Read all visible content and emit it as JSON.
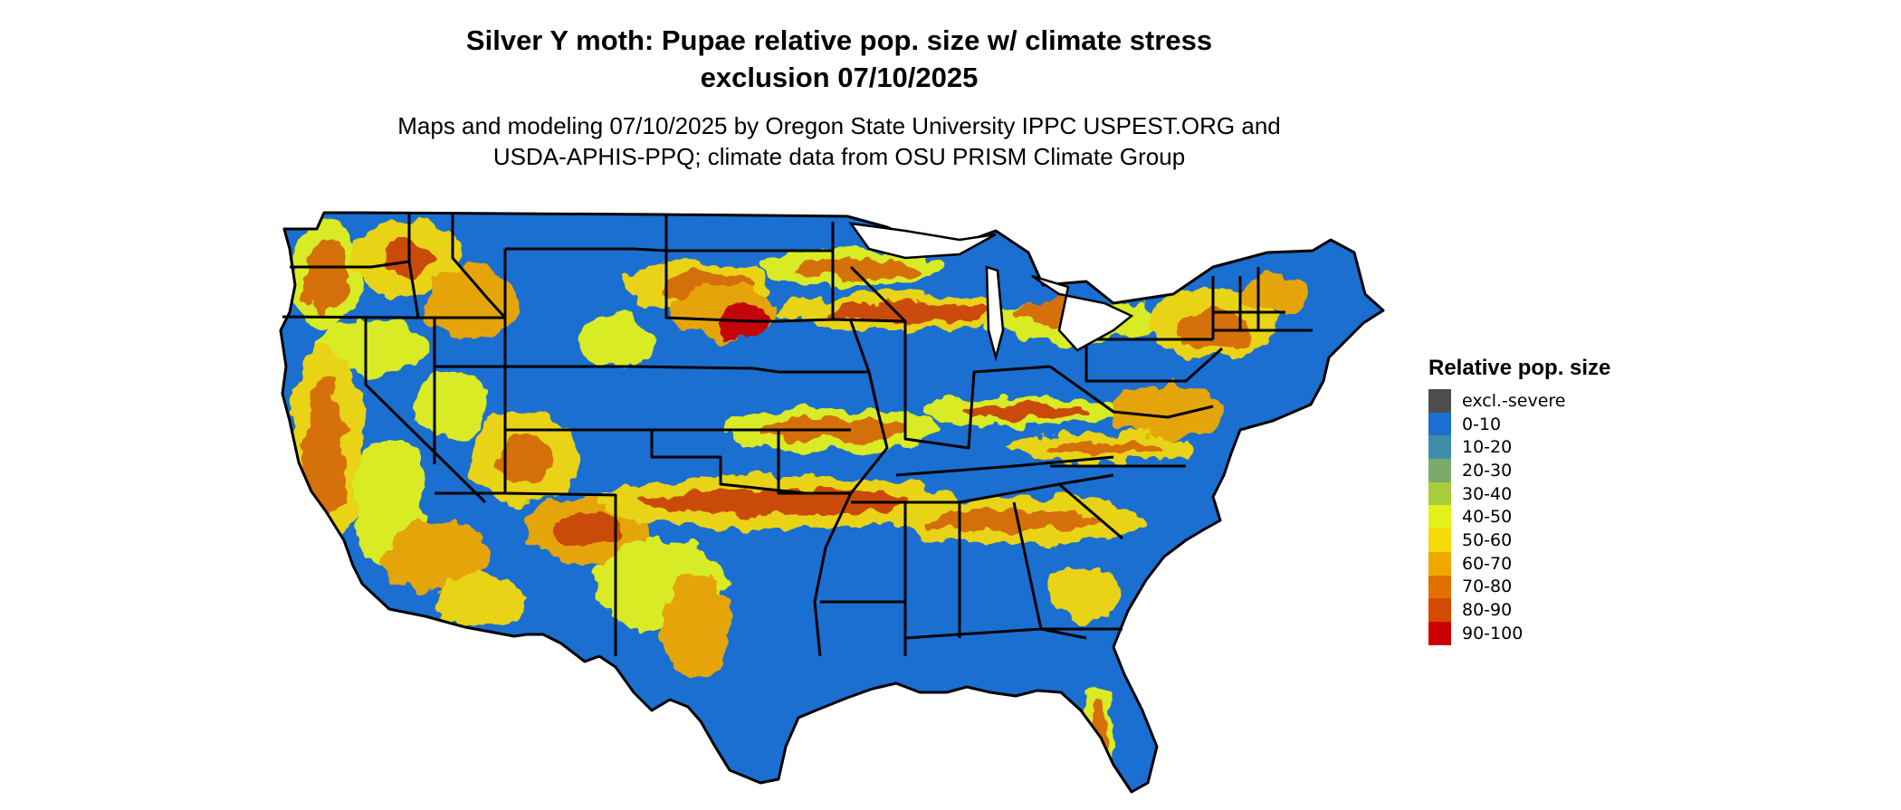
{
  "title": {
    "line1": "Silver Y moth: Pupae relative pop. size w/ climate stress",
    "line2": "exclusion 07/10/2025"
  },
  "subtitle": {
    "line1": "Maps and modeling 07/10/2025 by Oregon State University IPPC USPEST.ORG and",
    "line2": "USDA-APHIS-PPQ; climate data from OSU PRISM Climate Group"
  },
  "map": {
    "region": "contiguous-united-states",
    "base_color": "#1a6fd0",
    "border_color": "#000000",
    "hotspot_colors": [
      "#e3f21a",
      "#f5d90a",
      "#f0a800",
      "#e07000",
      "#d44a00",
      "#cc0000"
    ]
  },
  "legend": {
    "title": "Relative pop. size",
    "items": [
      {
        "label": "excl.-severe",
        "color": "#4d4d4d"
      },
      {
        "label": "0-10",
        "color": "#1a6fd0"
      },
      {
        "label": "10-20",
        "color": "#3e8ea8"
      },
      {
        "label": "20-30",
        "color": "#7aab6a"
      },
      {
        "label": "30-40",
        "color": "#a9cc3c"
      },
      {
        "label": "40-50",
        "color": "#e3f21a"
      },
      {
        "label": "50-60",
        "color": "#f5d90a"
      },
      {
        "label": "60-70",
        "color": "#f0a800"
      },
      {
        "label": "70-80",
        "color": "#e07000"
      },
      {
        "label": "80-90",
        "color": "#d44a00"
      },
      {
        "label": "90-100",
        "color": "#cc0000"
      }
    ]
  }
}
